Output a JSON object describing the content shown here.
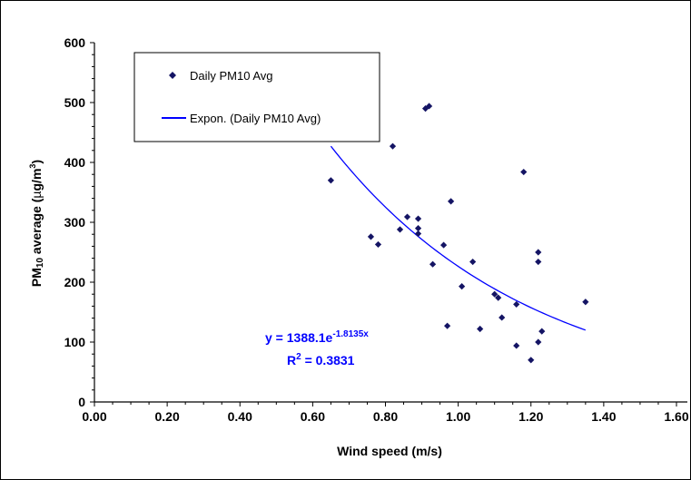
{
  "chart_data": {
    "type": "scatter",
    "xlabel": "Wind speed (m/s)",
    "ylabel_main": "PM",
    "ylabel_sub": "10",
    "ylabel_rest": " average (",
    "ylabel_mu": "µ",
    "ylabel_unit": "g/m",
    "ylabel_sup": "3",
    "ylabel_close": ")",
    "xlim": [
      0.0,
      1.6
    ],
    "ylim": [
      0,
      600
    ],
    "x_ticks": [
      "0.00",
      "0.20",
      "0.40",
      "0.60",
      "0.80",
      "1.00",
      "1.20",
      "1.40",
      "1.60"
    ],
    "y_ticks": [
      "0",
      "100",
      "200",
      "300",
      "400",
      "500",
      "600"
    ],
    "grid": false,
    "legend_position": "top-left",
    "series": [
      {
        "name": "Daily PM10 Avg",
        "color": "#141464",
        "marker": "diamond",
        "points": [
          [
            0.65,
            370
          ],
          [
            0.76,
            276
          ],
          [
            0.78,
            263
          ],
          [
            0.82,
            427
          ],
          [
            0.84,
            288
          ],
          [
            0.86,
            309
          ],
          [
            0.89,
            306
          ],
          [
            0.89,
            290
          ],
          [
            0.89,
            281
          ],
          [
            0.91,
            490
          ],
          [
            0.92,
            494
          ],
          [
            0.93,
            230
          ],
          [
            0.96,
            262
          ],
          [
            0.97,
            127
          ],
          [
            0.98,
            335
          ],
          [
            1.01,
            193
          ],
          [
            1.04,
            234
          ],
          [
            1.06,
            122
          ],
          [
            1.1,
            180
          ],
          [
            1.11,
            174
          ],
          [
            1.12,
            141
          ],
          [
            1.16,
            163
          ],
          [
            1.16,
            94
          ],
          [
            1.18,
            384
          ],
          [
            1.2,
            70
          ],
          [
            1.22,
            100
          ],
          [
            1.22,
            234
          ],
          [
            1.22,
            250
          ],
          [
            1.23,
            118
          ],
          [
            1.35,
            167
          ]
        ]
      }
    ],
    "trendline": {
      "name": "Expon. (Daily PM10 Avg)",
      "color": "#0000ff",
      "type": "exponential",
      "a": 1388.1,
      "b": -1.8135,
      "x_range": [
        0.65,
        1.35
      ],
      "equation_prefix": "y = 1388.1e",
      "equation_exponent": "-1.8135x",
      "r2_prefix": "R",
      "r2_sup": "2",
      "r2_value": " = 0.3831"
    }
  }
}
